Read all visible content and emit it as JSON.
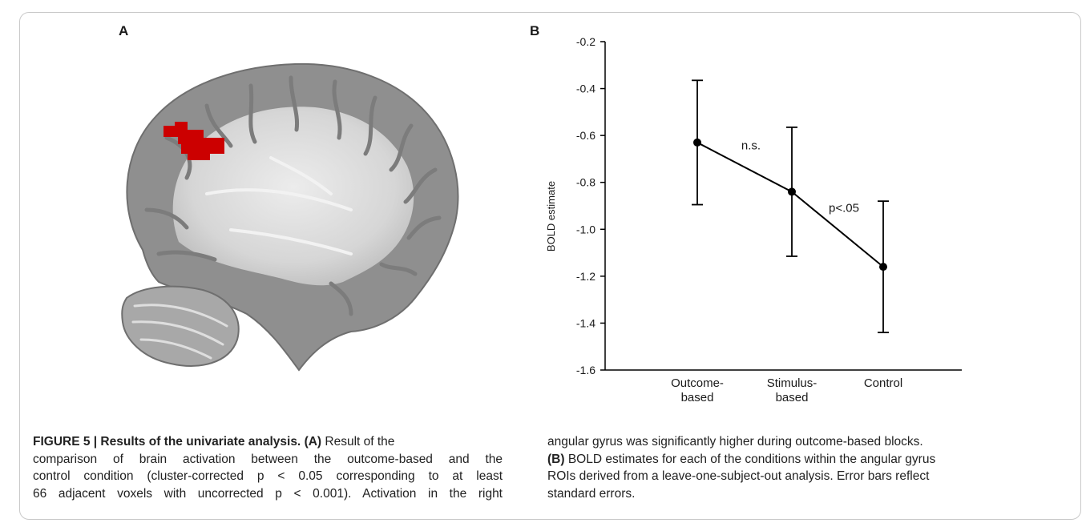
{
  "panels": {
    "a_label": "A",
    "b_label": "B"
  },
  "chart_data": {
    "type": "line",
    "ylabel": "BOLD estimate",
    "xlabel": "",
    "ylim": [
      -1.6,
      -0.2
    ],
    "yticks": [
      -0.2,
      -0.4,
      -0.6,
      -0.8,
      -1.0,
      -1.2,
      -1.4,
      -1.6
    ],
    "ytick_labels": [
      "-0.2",
      "-0.4",
      "-0.6",
      "-0.8",
      "-1.0",
      "-1.2",
      "-1.4",
      "-1.6"
    ],
    "categories": [
      "Outcome-based",
      "Stimulus-based",
      "Control"
    ],
    "category_lines": [
      [
        "Outcome-",
        "based"
      ],
      [
        "Stimulus-",
        "based"
      ],
      [
        "Control"
      ]
    ],
    "values": [
      -0.63,
      -0.84,
      -1.16
    ],
    "errors": [
      0.265,
      0.275,
      0.28
    ],
    "annotations": [
      {
        "text": "n.s.",
        "between": [
          0,
          1
        ]
      },
      {
        "text": "p<.05",
        "between": [
          1,
          2
        ]
      }
    ],
    "grid": false,
    "colors": {
      "line": "#000000",
      "marker": "#000000"
    }
  },
  "caption": {
    "fig_label": "FIGURE 5 | Results of the univariate analysis.",
    "a_ref": "(A)",
    "line1_rest": "Result of the",
    "line2": "comparison of brain activation between the outcome-based and the",
    "line3": "control condition (cluster-corrected p < 0.05 corresponding to at least",
    "line4": "66 adjacent voxels with uncorrected p < 0.001). Activation in the right",
    "line5": "angular gyrus was significantly higher during outcome-based blocks.",
    "b_ref": "(B)",
    "line6_rest": "BOLD estimates for each of the conditions within the angular gyrus",
    "line7": "ROIs derived from a leave-one-subject-out analysis. Error bars reflect",
    "line8": "standard errors."
  },
  "colors": {
    "activation": "#cc0000",
    "brain_grey": "#9a9a9a"
  }
}
